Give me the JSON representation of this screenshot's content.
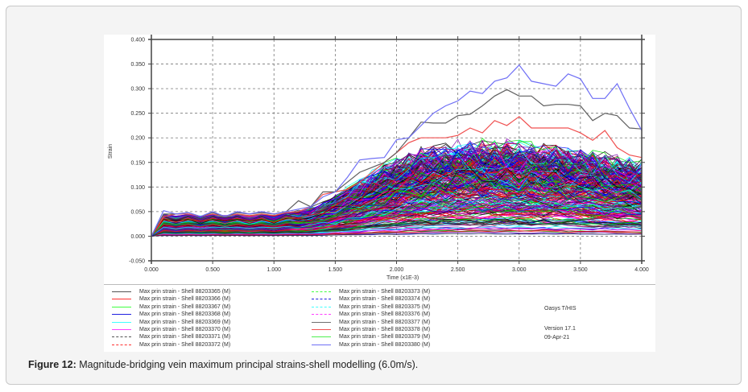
{
  "caption": {
    "label": "Figure 12:",
    "text": " Magnitude-bridging vein maximum principal strains-shell modelling (6.0m/s)."
  },
  "side_info": {
    "software": "Oasys T/HIS",
    "version": "Version 17.1",
    "date": "09-Apr-21"
  },
  "chart_data": {
    "type": "line",
    "title": "",
    "xlabel": "Time (x1E-3)",
    "ylabel": "Strain",
    "xlim": [
      0,
      4
    ],
    "ylim": [
      -0.05,
      0.4
    ],
    "grid": true,
    "x_ticks": [
      "0.000",
      "0.500",
      "1.000",
      "1.500",
      "2.000",
      "2.500",
      "3.000",
      "3.500",
      "4.000"
    ],
    "y_ticks": [
      "-0.050",
      "0.000",
      "0.050",
      "0.100",
      "0.150",
      "0.200",
      "0.250",
      "0.300",
      "0.350",
      "0.400"
    ],
    "x": [
      0,
      0.1,
      0.2,
      0.3,
      0.4,
      0.5,
      0.6,
      0.7,
      0.8,
      0.9,
      1.0,
      1.1,
      1.2,
      1.3,
      1.4,
      1.5,
      1.6,
      1.7,
      1.8,
      1.9,
      2.0,
      2.1,
      2.2,
      2.3,
      2.4,
      2.5,
      2.6,
      2.7,
      2.8,
      2.9,
      3.0,
      3.1,
      3.2,
      3.3,
      3.4,
      3.5,
      3.6,
      3.7,
      3.8,
      3.9,
      4.0
    ],
    "series": [
      {
        "name": "Max prin strain - Shell 88203380 (M)",
        "color": "#6f6ff5",
        "values": [
          0,
          0.052,
          0.045,
          0.048,
          0.04,
          0.05,
          0.04,
          0.05,
          0.045,
          0.05,
          0.045,
          0.05,
          0.055,
          0.06,
          0.08,
          0.09,
          0.12,
          0.155,
          0.158,
          0.16,
          0.196,
          0.2,
          0.225,
          0.25,
          0.265,
          0.275,
          0.295,
          0.29,
          0.315,
          0.322,
          0.348,
          0.315,
          0.31,
          0.305,
          0.33,
          0.32,
          0.28,
          0.28,
          0.31,
          0.26,
          0.215
        ]
      },
      {
        "name": "Max prin strain - Shell 88203377 (M)",
        "color": "#606060",
        "values": [
          0,
          0.045,
          0.045,
          0.048,
          0.04,
          0.048,
          0.04,
          0.048,
          0.045,
          0.048,
          0.045,
          0.05,
          0.072,
          0.06,
          0.09,
          0.09,
          0.11,
          0.13,
          0.14,
          0.15,
          0.17,
          0.2,
          0.232,
          0.23,
          0.23,
          0.245,
          0.248,
          0.265,
          0.285,
          0.298,
          0.285,
          0.285,
          0.265,
          0.268,
          0.268,
          0.265,
          0.235,
          0.25,
          0.245,
          0.22,
          0.218
        ]
      },
      {
        "name": "Max prin strain - Shell 88203378 (M)",
        "color": "#f05050",
        "values": [
          0,
          0.04,
          0.045,
          0.045,
          0.04,
          0.045,
          0.04,
          0.045,
          0.042,
          0.045,
          0.042,
          0.048,
          0.05,
          0.06,
          0.085,
          0.09,
          0.095,
          0.11,
          0.13,
          0.15,
          0.17,
          0.19,
          0.2,
          0.2,
          0.2,
          0.205,
          0.22,
          0.21,
          0.235,
          0.225,
          0.243,
          0.22,
          0.22,
          0.22,
          0.22,
          0.21,
          0.195,
          0.215,
          0.18,
          0.165,
          0.16
        ]
      }
    ],
    "bulk_envelope": {
      "description_values": [
        0,
        0.045,
        0.045,
        0.045,
        0.045,
        0.045,
        0.045,
        0.045,
        0.045,
        0.045,
        0.045,
        0.048,
        0.05,
        0.055,
        0.065,
        0.08,
        0.095,
        0.11,
        0.125,
        0.14,
        0.15,
        0.16,
        0.168,
        0.175,
        0.18,
        0.182,
        0.185,
        0.185,
        0.185,
        0.185,
        0.182,
        0.18,
        0.178,
        0.175,
        0.172,
        0.168,
        0.165,
        0.16,
        0.155,
        0.15,
        0.145
      ]
    },
    "legend": [
      {
        "label": "Max prin strain - Shell 88203365 (M)",
        "color": "#555555",
        "dash": false
      },
      {
        "label": "Max prin strain - Shell 88203366 (M)",
        "color": "#ff3030",
        "dash": false
      },
      {
        "label": "Max prin strain - Shell 88203367 (M)",
        "color": "#40ff40",
        "dash": false
      },
      {
        "label": "Max prin strain - Shell 88203368 (M)",
        "color": "#2020e0",
        "dash": false
      },
      {
        "label": "Max prin strain - Shell 88203369 (M)",
        "color": "#40ffff",
        "dash": false
      },
      {
        "label": "Max prin strain - Shell 88203370 (M)",
        "color": "#ff40ff",
        "dash": false
      },
      {
        "label": "Max prin strain - Shell 88203371 (M)",
        "color": "#555555",
        "dash": true
      },
      {
        "label": "Max prin strain - Shell 88203372 (M)",
        "color": "#ff3030",
        "dash": true
      },
      {
        "label": "Max prin strain - Shell 88203373 (M)",
        "color": "#40ff40",
        "dash": true
      },
      {
        "label": "Max prin strain - Shell 88203374 (M)",
        "color": "#2020e0",
        "dash": true
      },
      {
        "label": "Max prin strain - Shell 88203375 (M)",
        "color": "#40ffff",
        "dash": true
      },
      {
        "label": "Max prin strain - Shell 88203376 (M)",
        "color": "#ff40ff",
        "dash": true
      },
      {
        "label": "Max prin strain - Shell 88203377 (M)",
        "color": "#707070",
        "dash": false
      },
      {
        "label": "Max prin strain - Shell 88203378 (M)",
        "color": "#f05050",
        "dash": false
      },
      {
        "label": "Max prin strain - Shell 88203379 (M)",
        "color": "#50f050",
        "dash": false
      },
      {
        "label": "Max prin strain - Shell 88203380 (M)",
        "color": "#6f6ff5",
        "dash": false
      }
    ]
  }
}
